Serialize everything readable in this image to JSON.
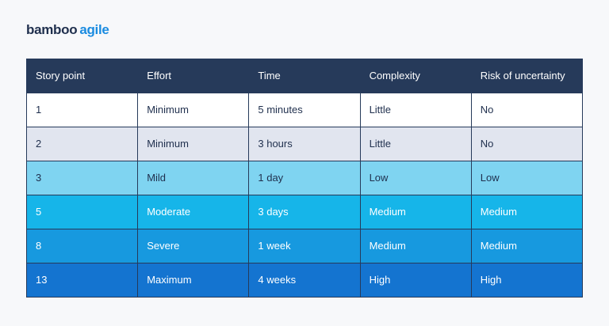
{
  "logo": {
    "primary": "bamboo",
    "secondary": "agile"
  },
  "table": {
    "header": [
      "Story point",
      "Effort",
      "Time",
      "Complexity",
      "Risk of uncertainty"
    ],
    "rows": [
      [
        "1",
        "Minimum",
        "5 minutes",
        "Little",
        "No"
      ],
      [
        "2",
        "Minimum",
        "3 hours",
        "Little",
        "No"
      ],
      [
        "3",
        "Mild",
        "1 day",
        "Low",
        "Low"
      ],
      [
        "5",
        "Moderate",
        "3 days",
        "Medium",
        "Medium"
      ],
      [
        "8",
        "Severe",
        "1 week",
        "Medium",
        "Medium"
      ],
      [
        "13",
        "Maximum",
        "4 weeks",
        "High",
        "High"
      ]
    ]
  }
}
